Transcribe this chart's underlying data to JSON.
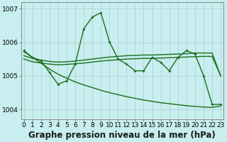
{
  "bg_color": "#c8eef0",
  "line_color": "#1a6e1a",
  "grid_color": "#a8cece",
  "xlabel": "Graphe pression niveau de la mer (hPa)",
  "ylim": [
    1003.7,
    1007.2
  ],
  "xlim": [
    -0.3,
    23.3
  ],
  "yticks": [
    1004,
    1005,
    1006,
    1007
  ],
  "xticks": [
    0,
    1,
    2,
    3,
    4,
    5,
    6,
    7,
    8,
    9,
    10,
    11,
    12,
    13,
    14,
    15,
    16,
    17,
    18,
    19,
    20,
    21,
    22,
    23
  ],
  "title_fontsize": 8.5,
  "tick_fontsize": 6.5,
  "linewidth": 1.0,
  "s1": [
    1005.75,
    1005.55,
    1005.45,
    1005.1,
    1004.75,
    1004.85,
    1005.35,
    1006.4,
    1006.75,
    1006.88,
    1006.02,
    1005.5,
    1005.35,
    1005.15,
    1005.15,
    1005.55,
    1005.4,
    1005.15,
    1005.55,
    1005.75,
    1005.65,
    1005.0,
    1004.15,
    1004.15
  ],
  "s2": [
    1005.72,
    1005.55,
    1005.38,
    1005.2,
    1005.05,
    1004.93,
    1004.82,
    1004.73,
    1004.65,
    1004.57,
    1004.5,
    1004.44,
    1004.38,
    1004.33,
    1004.28,
    1004.24,
    1004.2,
    1004.17,
    1004.14,
    1004.11,
    1004.09,
    1004.07,
    1004.06,
    1004.1
  ],
  "s3": [
    1005.6,
    1005.52,
    1005.47,
    1005.43,
    1005.41,
    1005.42,
    1005.44,
    1005.47,
    1005.5,
    1005.53,
    1005.56,
    1005.58,
    1005.6,
    1005.61,
    1005.62,
    1005.62,
    1005.63,
    1005.64,
    1005.65,
    1005.66,
    1005.68,
    1005.68,
    1005.68,
    1005.0
  ],
  "s4": [
    1005.5,
    1005.42,
    1005.38,
    1005.35,
    1005.33,
    1005.34,
    1005.36,
    1005.38,
    1005.41,
    1005.44,
    1005.46,
    1005.48,
    1005.5,
    1005.51,
    1005.52,
    1005.52,
    1005.53,
    1005.54,
    1005.55,
    1005.56,
    1005.57,
    1005.58,
    1005.58,
    1005.0
  ]
}
